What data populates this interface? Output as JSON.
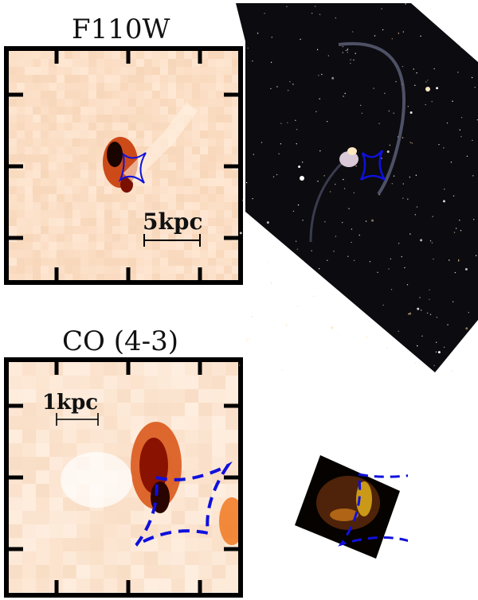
{
  "panels": {
    "top": {
      "title": "F110W",
      "scale_label": "5kpc"
    },
    "bottom": {
      "title": "CO (4-3)",
      "scale_label": "1kpc"
    }
  },
  "colors": {
    "heat_light": "#fde4c8",
    "heat_dark": "#1a0000",
    "caustic": "#1010dd",
    "frame": "#000000",
    "sky": "#0b0b10"
  }
}
